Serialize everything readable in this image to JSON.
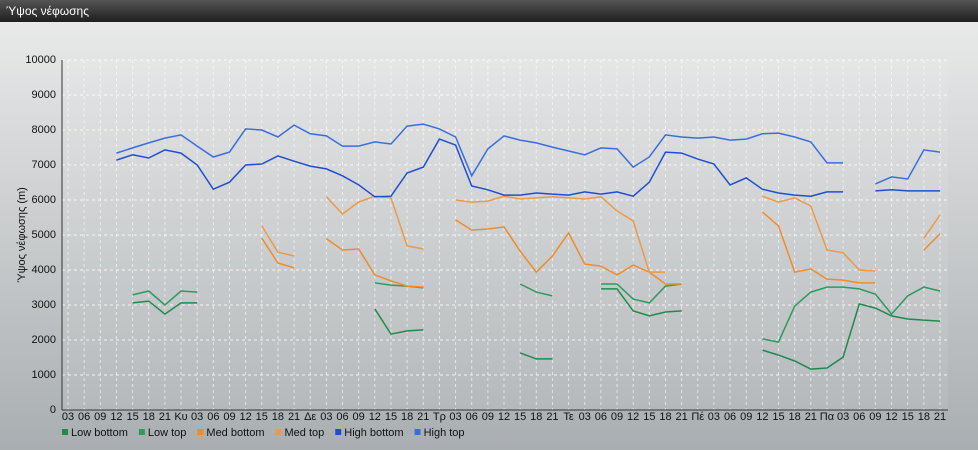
{
  "chart_data": {
    "type": "line",
    "title": "Ύψος νέφωσης",
    "y_label": "Ύψος νέφωσης (m)",
    "categories": [
      "03",
      "06",
      "09",
      "12",
      "15",
      "18",
      "21",
      "Κυ",
      "03",
      "06",
      "09",
      "12",
      "15",
      "18",
      "21",
      "Δε",
      "03",
      "06",
      "09",
      "12",
      "15",
      "18",
      "21",
      "Τρ",
      "03",
      "06",
      "09",
      "12",
      "15",
      "18",
      "21",
      "Τε",
      "03",
      "06",
      "09",
      "12",
      "15",
      "18",
      "21",
      "Πέ",
      "03",
      "06",
      "09",
      "12",
      "15",
      "18",
      "21",
      "Πα",
      "03",
      "06",
      "09",
      "12",
      "15",
      "18",
      "21"
    ],
    "ylim": [
      0,
      10000
    ],
    "yticks": [
      0,
      1000,
      2000,
      3000,
      4000,
      5000,
      6000,
      7000,
      8000,
      9000,
      10000
    ],
    "grid": true,
    "series": [
      {
        "name": "Low bottom",
        "color": "#1f8a4c",
        "values": [
          null,
          null,
          null,
          null,
          3060,
          3110,
          2740,
          3060,
          3060,
          null,
          null,
          null,
          null,
          null,
          null,
          null,
          null,
          null,
          null,
          2890,
          2170,
          2260,
          2290,
          null,
          null,
          null,
          null,
          null,
          1630,
          1460,
          1460,
          null,
          null,
          3460,
          3460,
          2830,
          2690,
          2800,
          2830,
          null,
          null,
          null,
          null,
          1710,
          1570,
          1400,
          1170,
          1200,
          1510,
          3030,
          2910,
          2690,
          2600,
          2570,
          2540
        ]
      },
      {
        "name": "Low top",
        "color": "#2e9a5e",
        "values": [
          null,
          null,
          null,
          null,
          3290,
          3400,
          3000,
          3400,
          3370,
          null,
          null,
          null,
          null,
          null,
          null,
          null,
          null,
          null,
          null,
          3630,
          3570,
          3540,
          3490,
          null,
          null,
          null,
          null,
          null,
          3600,
          3370,
          3260,
          null,
          null,
          3600,
          3600,
          3170,
          3060,
          3540,
          3600,
          null,
          null,
          null,
          null,
          2030,
          1940,
          2970,
          3370,
          3510,
          3510,
          3460,
          3310,
          2740,
          3260,
          3510,
          3400
        ]
      },
      {
        "name": "Med bottom",
        "color": "#f08c28",
        "values": [
          null,
          null,
          null,
          null,
          null,
          null,
          null,
          null,
          null,
          null,
          null,
          null,
          4910,
          4200,
          4060,
          null,
          4890,
          4570,
          4600,
          3860,
          3690,
          3540,
          3510,
          null,
          5430,
          5140,
          5170,
          5230,
          4540,
          3940,
          4400,
          5060,
          4170,
          4110,
          3860,
          4140,
          3940,
          3600,
          3600,
          null,
          null,
          null,
          null,
          5660,
          5260,
          3940,
          4030,
          3740,
          3710,
          3630,
          3630,
          null,
          null,
          4570,
          5030
        ]
      },
      {
        "name": "Med top",
        "color": "#eb9a48",
        "values": [
          null,
          null,
          null,
          null,
          null,
          null,
          null,
          null,
          null,
          null,
          null,
          null,
          5260,
          4510,
          4400,
          null,
          6090,
          5600,
          5940,
          6110,
          6060,
          4690,
          4600,
          null,
          6000,
          5940,
          5970,
          6110,
          6030,
          6060,
          6090,
          6060,
          6030,
          6090,
          5690,
          5400,
          3940,
          3940,
          null,
          null,
          null,
          null,
          null,
          6110,
          5940,
          6060,
          5830,
          4570,
          4490,
          4000,
          3970,
          null,
          null,
          4910,
          5570
        ]
      },
      {
        "name": "High bottom",
        "color": "#1f4fd0",
        "values": [
          null,
          null,
          null,
          7140,
          7290,
          7200,
          7430,
          7340,
          7000,
          6310,
          6510,
          7000,
          7030,
          7260,
          7110,
          6970,
          6890,
          6690,
          6430,
          6090,
          6110,
          6770,
          6940,
          7740,
          7570,
          6400,
          6290,
          6140,
          6140,
          6200,
          6170,
          6140,
          6230,
          6170,
          6230,
          6110,
          6510,
          7370,
          7340,
          7170,
          7030,
          6430,
          6630,
          6310,
          6200,
          6140,
          6110,
          6230,
          6230,
          null,
          6260,
          6290,
          6260,
          6260,
          6260
        ]
      },
      {
        "name": "High top",
        "color": "#3a6ee0",
        "values": [
          null,
          null,
          null,
          7340,
          7490,
          7630,
          7770,
          7860,
          7540,
          7230,
          7370,
          8030,
          8000,
          7800,
          8140,
          7890,
          7830,
          7540,
          7540,
          7660,
          7600,
          8110,
          8170,
          8030,
          7800,
          6690,
          7460,
          7830,
          7710,
          7630,
          7510,
          7400,
          7290,
          7490,
          7460,
          6940,
          7230,
          7860,
          7800,
          7770,
          7800,
          7710,
          7740,
          7890,
          7910,
          7800,
          7660,
          7060,
          7060,
          null,
          6460,
          6660,
          6600,
          7430,
          7370
        ]
      }
    ]
  }
}
